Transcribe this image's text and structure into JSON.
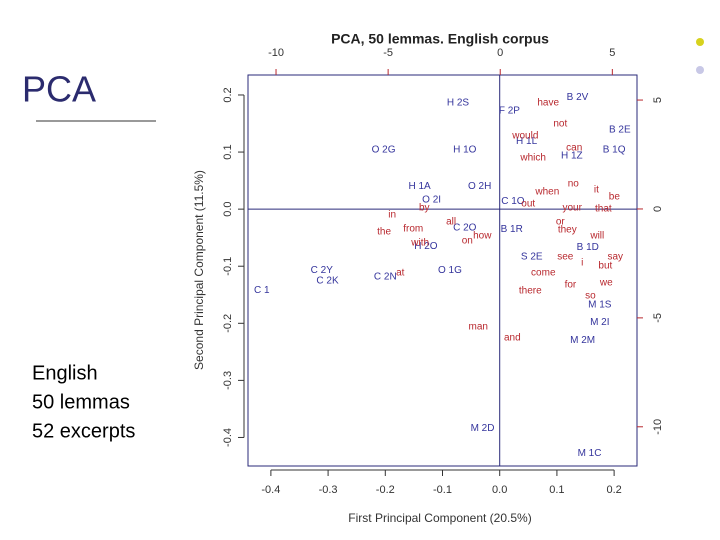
{
  "slide": {
    "title": "PCA",
    "notes": [
      "English",
      "50 lemmas",
      "52 excerpts"
    ]
  },
  "chart_data": {
    "type": "scatter",
    "title": "PCA, 50 lemmas. English corpus",
    "x_label": "First Principal Component (20.5%)",
    "y_label": "Second Principal Component (11.5%)",
    "xlim": [
      -0.44,
      0.24
    ],
    "ylim": [
      -0.45,
      0.235
    ],
    "xticks": [
      -0.4,
      -0.3,
      -0.2,
      -0.1,
      {
        "value": 0,
        "label": "0.0"
      },
      0.1,
      0.2
    ],
    "yticks": [
      -0.4,
      -0.3,
      -0.2,
      -0.1,
      {
        "value": 0,
        "label": "0.0"
      },
      0.1,
      0.2
    ],
    "x2lim": [
      -11.25,
      6.1
    ],
    "y2lim": [
      -11.8,
      6.15
    ],
    "x2ticks": [
      -10,
      -5,
      0,
      5
    ],
    "y2ticks": [
      -10,
      -5,
      0,
      5
    ],
    "series": [
      {
        "color": "#34349c",
        "labels": [
          "H 2S",
          "B 2V",
          "F 2P",
          "B 2E",
          "O 2G",
          "B 1Q",
          "H 1A",
          "O 2I",
          "C 1O",
          "B 1R",
          "B 1D",
          "O 1G",
          "C 2Y",
          "C 2K",
          "C 2N",
          "C 1",
          "S 2E",
          "M 1S",
          "M 2I",
          "M 2M",
          "M 2D",
          "M 1C",
          "H 1O",
          "O 2H",
          "C 2O",
          "H 1Z",
          "H 1L",
          "H 2O"
        ],
        "x": [
          -0.073,
          0.136,
          0.017,
          0.21,
          -0.203,
          0.2,
          -0.14,
          -0.119,
          0.023,
          0.021,
          0.154,
          -0.087,
          -0.311,
          -0.301,
          -0.2,
          -0.416,
          0.056,
          0.175,
          0.175,
          0.145,
          -0.03,
          0.157,
          -0.061,
          -0.035,
          -0.061,
          0.126,
          0.047,
          -0.129
        ],
        "values": [
          0.186,
          0.196,
          0.172,
          0.139,
          0.104,
          0.104,
          0.04,
          0.016,
          0.014,
          -0.035,
          -0.067,
          -0.107,
          -0.107,
          -0.126,
          -0.119,
          -0.142,
          -0.084,
          -0.168,
          -0.198,
          -0.23,
          -0.384,
          -0.428,
          0.104,
          0.04,
          -0.033,
          0.093,
          0.119,
          -0.065
        ]
      },
      {
        "color": "#b8282e",
        "axis": "y2",
        "labels": [
          "have",
          "not",
          "would",
          "which",
          "can",
          "no",
          "when",
          "it",
          "be",
          "that",
          "your",
          "out",
          "in",
          "by",
          "all",
          "the",
          "from",
          "with",
          "on",
          "or",
          "they",
          "will",
          "how",
          "see",
          "i",
          "say",
          "but",
          "come",
          "for",
          "we",
          "there",
          "so",
          "at",
          "man",
          "and"
        ],
        "x": [
          2.14,
          2.68,
          1.12,
          1.47,
          3.3,
          3.26,
          2.1,
          4.29,
          5.09,
          4.6,
          3.21,
          1.25,
          -4.82,
          -3.39,
          -2.19,
          -5.18,
          -3.88,
          -3.57,
          -1.47,
          2.68,
          2.99,
          4.33,
          -0.8,
          2.9,
          3.66,
          5.13,
          4.69,
          1.92,
          3.13,
          4.73,
          1.34,
          4.02,
          -4.46,
          -0.98,
          0.54
        ],
        "values": [
          4.86,
          3.9,
          3.35,
          2.34,
          2.8,
          1.15,
          0.78,
          0.87,
          0.55,
          0,
          0.05,
          0.23,
          -0.28,
          0.05,
          -0.6,
          -1.06,
          -0.92,
          -1.56,
          -1.47,
          -0.6,
          -0.96,
          -1.24,
          -1.24,
          -2.2,
          -2.48,
          -2.2,
          -2.61,
          -2.94,
          -3.49,
          -3.39,
          -3.76,
          -3.99,
          -2.94,
          -5.41,
          -5.92
        ]
      }
    ]
  }
}
